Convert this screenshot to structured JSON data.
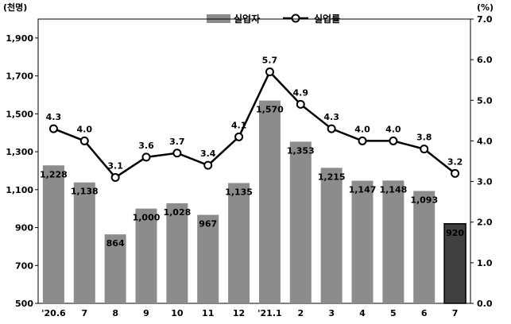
{
  "chart_data": {
    "type": "bar",
    "categories": [
      "'20.6",
      "7",
      "8",
      "9",
      "10",
      "11",
      "12",
      "'21.1",
      "2",
      "3",
      "4",
      "5",
      "6",
      "7"
    ],
    "series": [
      {
        "name": "실업자",
        "type": "bar",
        "axis": "left",
        "values": [
          1228,
          1138,
          864,
          1000,
          1028,
          967,
          1135,
          1570,
          1353,
          1215,
          1147,
          1148,
          1093,
          920
        ],
        "labels": [
          "1,228",
          "1,138",
          "864",
          "1,000",
          "1,028",
          "967",
          "1,135",
          "1,570",
          "1,353",
          "1,215",
          "1,147",
          "1,148",
          "1,093",
          "920"
        ],
        "color": "#8c8c8c",
        "highlight_color": "#404040",
        "highlight_index": 13
      },
      {
        "name": "실업률",
        "type": "line",
        "axis": "right",
        "values": [
          4.3,
          4.0,
          3.1,
          3.6,
          3.7,
          3.4,
          4.1,
          5.7,
          4.9,
          4.3,
          4.0,
          4.0,
          3.8,
          3.2
        ],
        "labels": [
          "4.3",
          "4.0",
          "3.1",
          "3.6",
          "3.7",
          "3.4",
          "4.1",
          "5.7",
          "4.9",
          "4.3",
          "4.0",
          "4.0",
          "3.8",
          "3.2"
        ],
        "color": "#000000"
      }
    ],
    "left_axis": {
      "unit": "(천명)",
      "ylim": [
        500,
        2000
      ],
      "ticks": [
        500,
        700,
        900,
        1100,
        1300,
        1500,
        1700,
        1900
      ],
      "tick_labels": [
        "500",
        "700",
        "900",
        "1,100",
        "1,300",
        "1,500",
        "1,700",
        "1,900"
      ]
    },
    "right_axis": {
      "unit": "(%)",
      "ylim": [
        0,
        7.0
      ],
      "ticks": [
        0,
        1,
        2,
        3,
        4,
        5,
        6,
        7
      ],
      "tick_labels": [
        "0.0",
        "1.0",
        "2.0",
        "3.0",
        "4.0",
        "5.0",
        "6.0",
        "7.0"
      ]
    },
    "grid": false,
    "legend": {
      "placement": "top-center",
      "items": [
        "실업자",
        "실업률"
      ]
    }
  }
}
